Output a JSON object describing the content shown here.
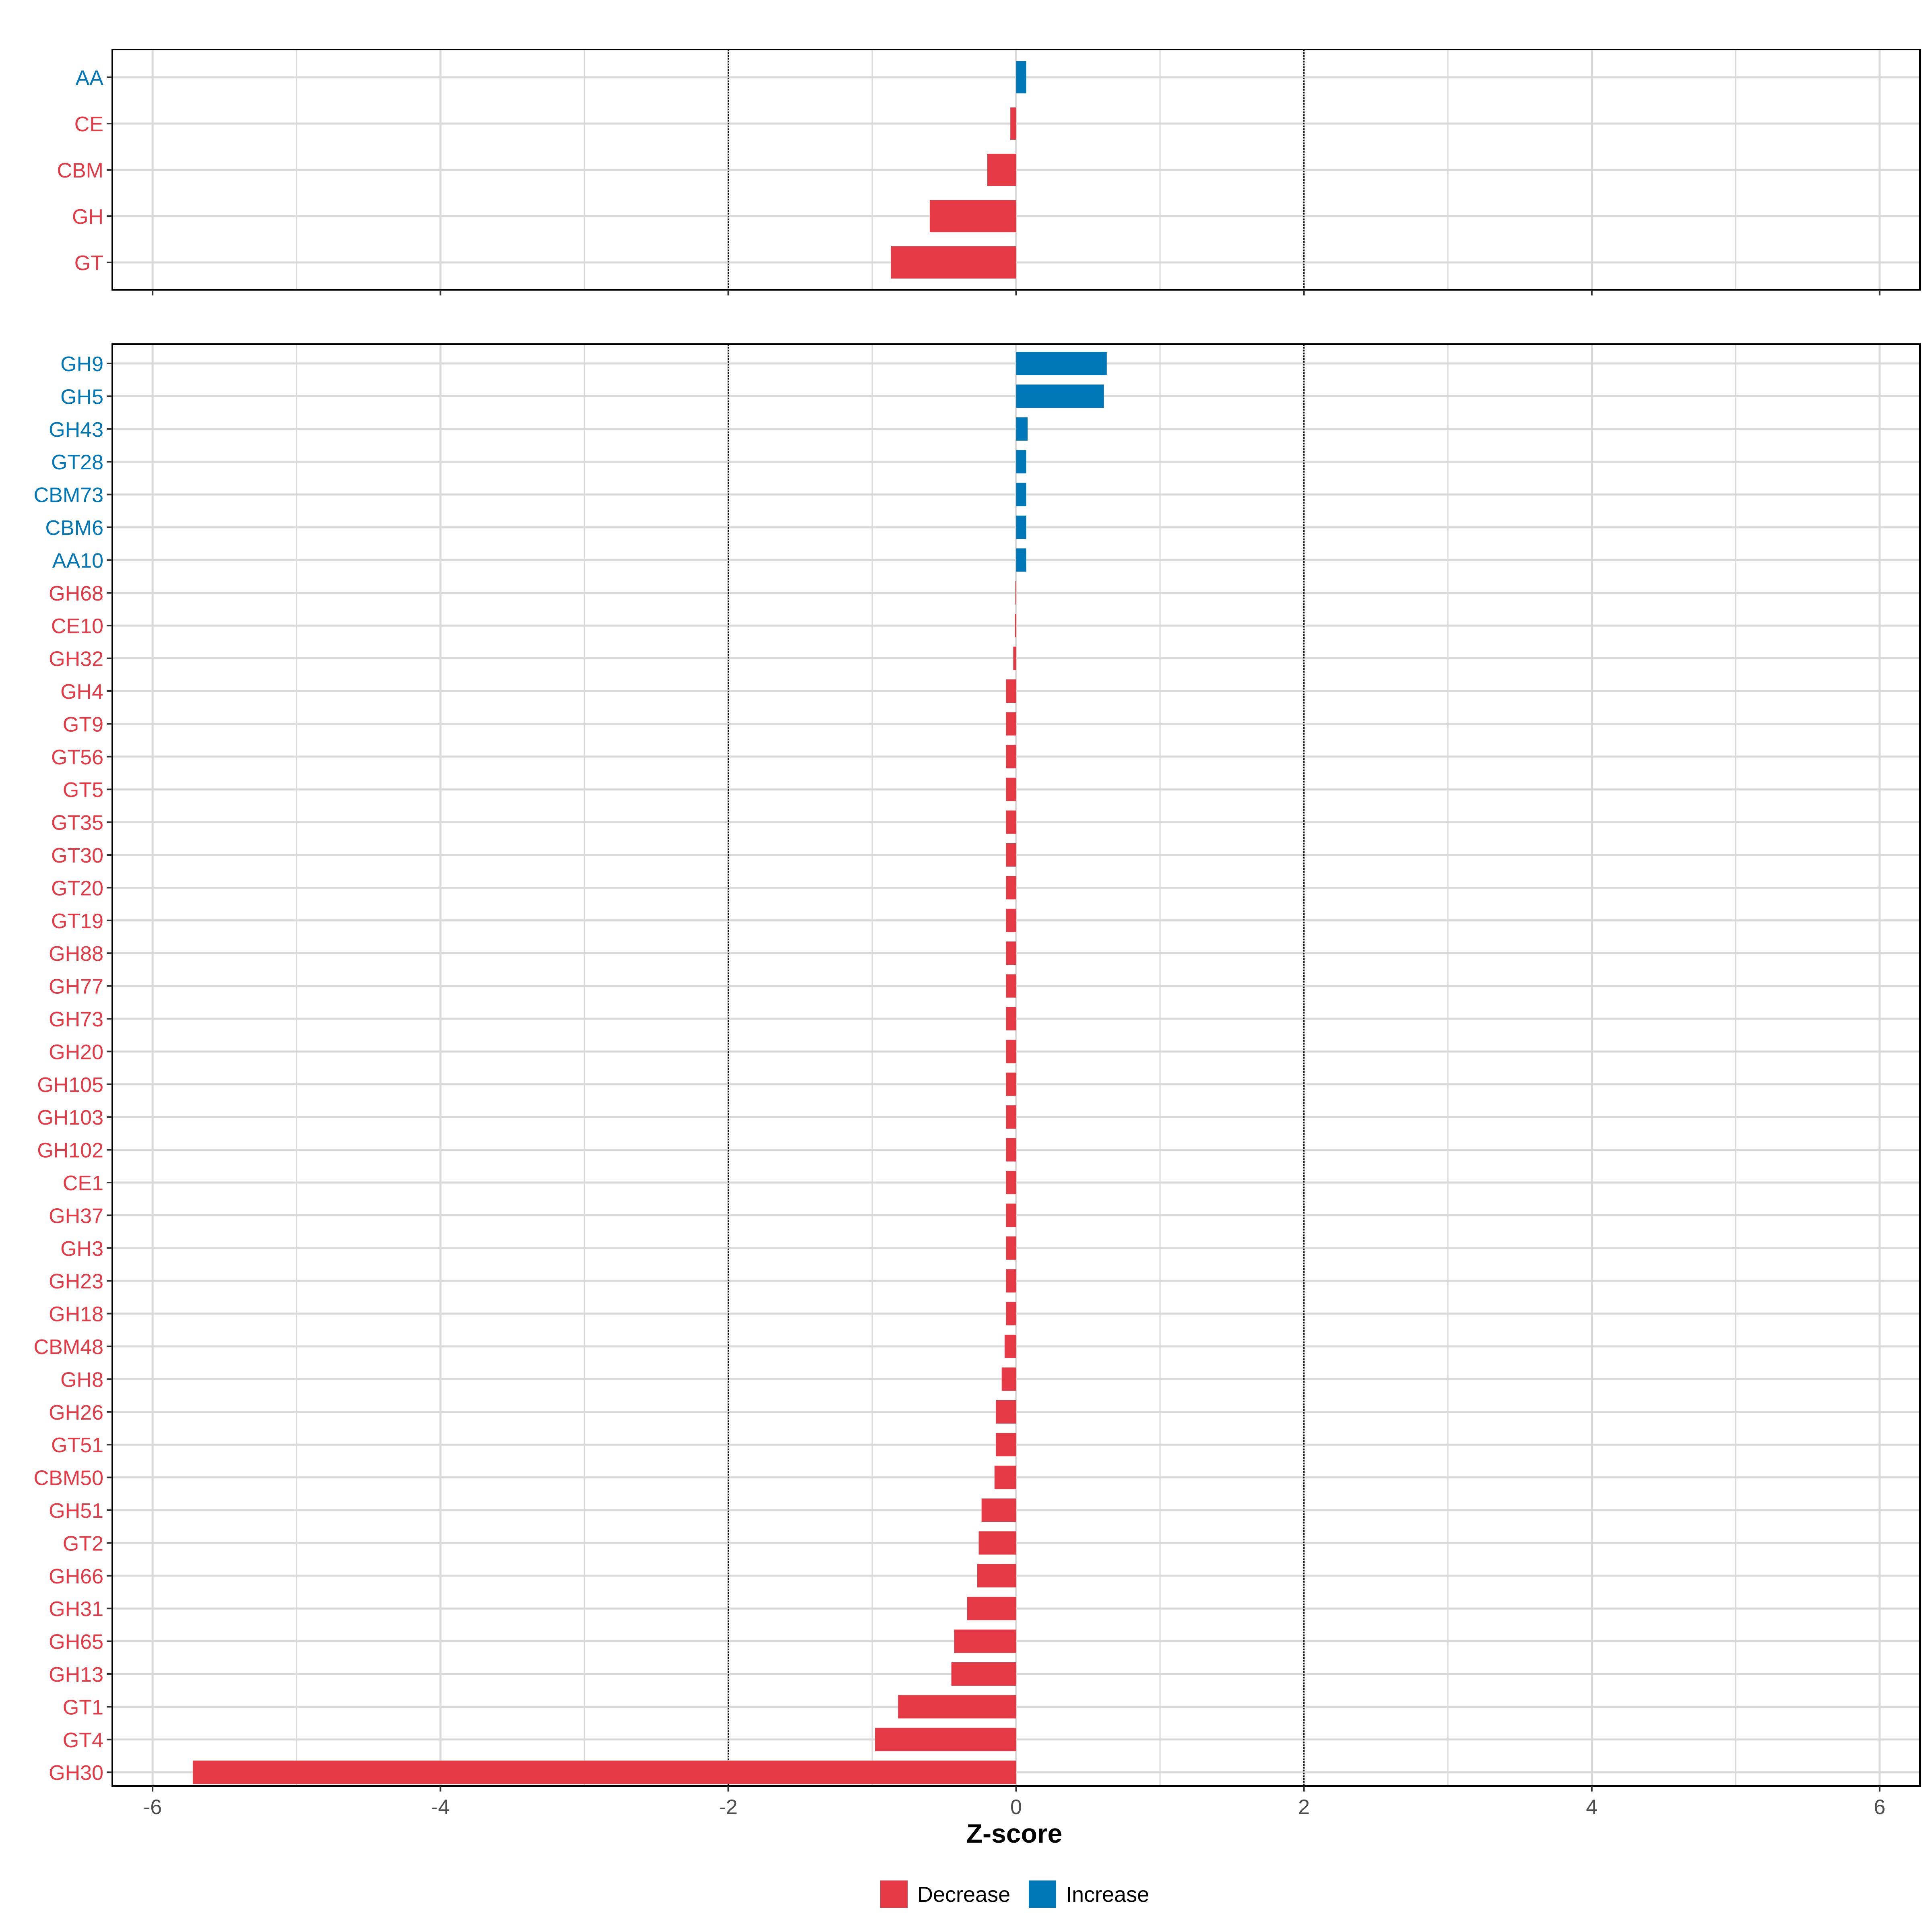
{
  "colors": {
    "decrease": "#E63946",
    "increase": "#0077B6",
    "grid": "#D9D9D9",
    "frame": "#000000",
    "tick_text": "#4D4D4D"
  },
  "chart_data": [
    {
      "type": "bar",
      "orientation": "horizontal",
      "panel": "top",
      "categories": [
        "AA",
        "CE",
        "CBM",
        "GH",
        "GT"
      ],
      "values": [
        0.07,
        -0.04,
        -0.2,
        -0.6,
        -0.87
      ],
      "xlim": [
        -6.28,
        6.28
      ],
      "xticks": [
        -6,
        -4,
        -2,
        0,
        2,
        4,
        6
      ],
      "reference_lines": [
        -2,
        2
      ]
    },
    {
      "type": "bar",
      "orientation": "horizontal",
      "panel": "bottom",
      "categories": [
        "GH9",
        "GH5",
        "GH43",
        "GT28",
        "CBM73",
        "CBM6",
        "AA10",
        "GH68",
        "CE10",
        "GH32",
        "GH4",
        "GT9",
        "GT56",
        "GT5",
        "GT35",
        "GT30",
        "GT20",
        "GT19",
        "GH88",
        "GH77",
        "GH73",
        "GH20",
        "GH105",
        "GH103",
        "GH102",
        "CE1",
        "GH37",
        "GH3",
        "GH23",
        "GH18",
        "CBM48",
        "GH8",
        "GH26",
        "GT51",
        "CBM50",
        "GH51",
        "GT2",
        "GH66",
        "GH31",
        "GH65",
        "GH13",
        "GT1",
        "GT4",
        "GH30"
      ],
      "values": [
        0.63,
        0.61,
        0.08,
        0.07,
        0.07,
        0.07,
        0.07,
        -0.005,
        -0.008,
        -0.02,
        -0.07,
        -0.07,
        -0.07,
        -0.07,
        -0.07,
        -0.07,
        -0.07,
        -0.07,
        -0.07,
        -0.07,
        -0.07,
        -0.07,
        -0.07,
        -0.07,
        -0.07,
        -0.07,
        -0.07,
        -0.07,
        -0.07,
        -0.07,
        -0.08,
        -0.1,
        -0.14,
        -0.14,
        -0.15,
        -0.24,
        -0.26,
        -0.27,
        -0.34,
        -0.43,
        -0.45,
        -0.82,
        -0.98,
        -5.72
      ],
      "xlim": [
        -6.28,
        6.28
      ],
      "xticks": [
        -6,
        -4,
        -2,
        0,
        2,
        4,
        6
      ],
      "reference_lines": [
        -2,
        2
      ],
      "xlabel": "Z-score"
    }
  ],
  "legend": {
    "position": "bottom",
    "items": [
      {
        "label": "Decrease",
        "color": "#E63946"
      },
      {
        "label": "Increase",
        "color": "#0077B6"
      }
    ]
  }
}
